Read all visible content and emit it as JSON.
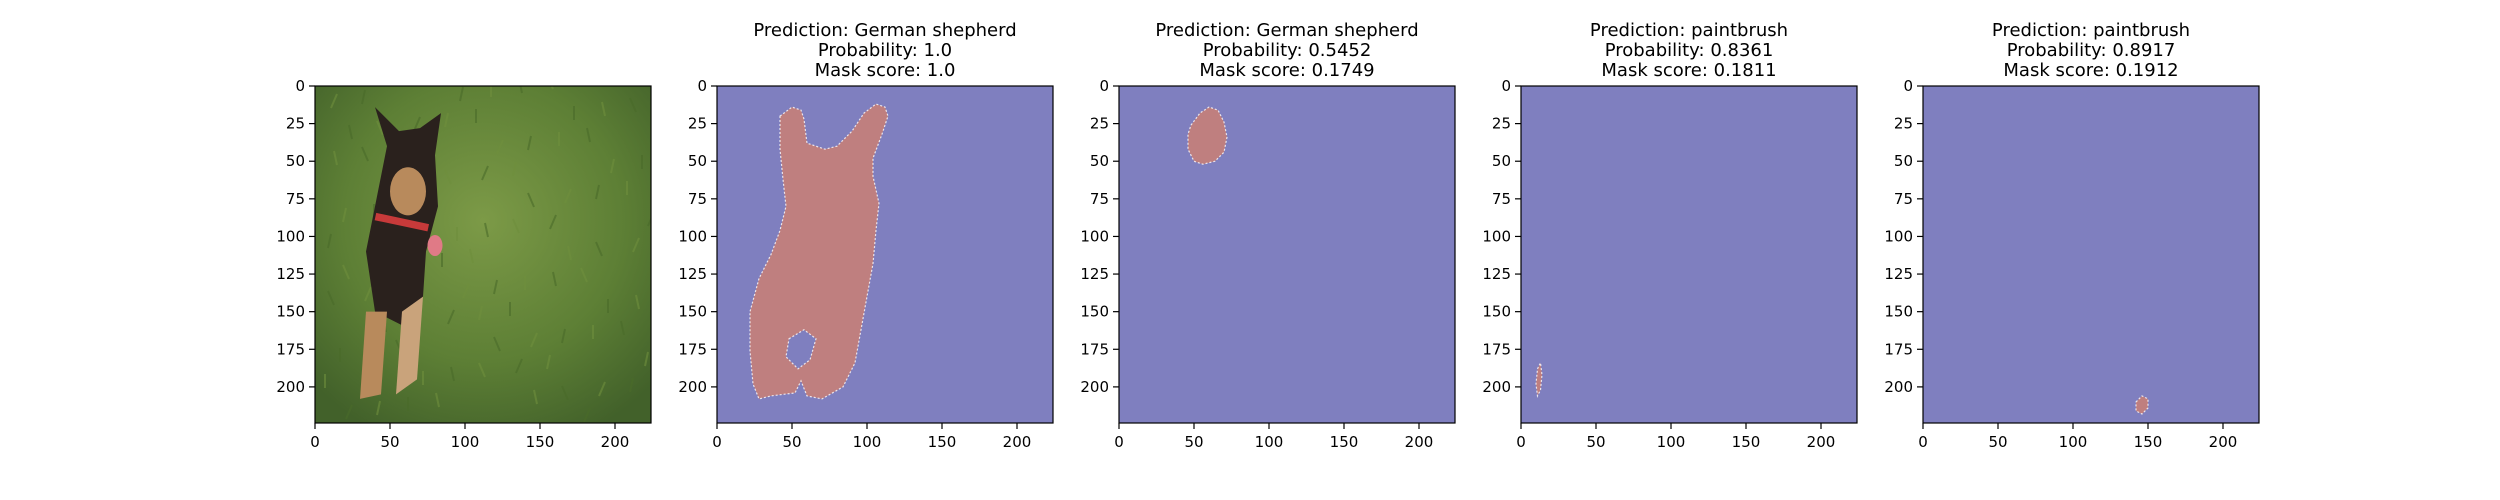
{
  "chart_data": [
    {
      "type": "image",
      "panel": "input-photo",
      "title": "",
      "xlim": [
        0,
        224
      ],
      "ylim": [
        224,
        0
      ],
      "xticks": [
        0,
        50,
        100,
        150,
        200
      ],
      "yticks": [
        0,
        25,
        50,
        75,
        100,
        125,
        150,
        175,
        200
      ],
      "colors": {
        "grass": "#4a6b2a",
        "grass_light": "#6f8f3d",
        "dog_dark": "#2a211d",
        "dog_tan": "#b88a5c",
        "collar": "#c73a3a",
        "tongue": "#e07a86"
      }
    },
    {
      "type": "heatmap",
      "panel": "mask-1",
      "title_lines": [
        "Prediction: German shepherd",
        "Probability: 1.0",
        "Mask score: 1.0"
      ],
      "xlim": [
        0,
        224
      ],
      "ylim": [
        224,
        0
      ],
      "xticks": [
        0,
        50,
        100,
        150,
        200
      ],
      "yticks": [
        0,
        25,
        50,
        75,
        100,
        125,
        150,
        175,
        200
      ],
      "background_color": "#7f7fbf",
      "mask_color": "#bf7f7f",
      "mask_polygon": [
        [
          42,
          20
        ],
        [
          50,
          14
        ],
        [
          56,
          16
        ],
        [
          58,
          22
        ],
        [
          60,
          38
        ],
        [
          72,
          42
        ],
        [
          80,
          40
        ],
        [
          90,
          30
        ],
        [
          98,
          18
        ],
        [
          106,
          12
        ],
        [
          112,
          14
        ],
        [
          114,
          20
        ],
        [
          110,
          32
        ],
        [
          104,
          48
        ],
        [
          104,
          60
        ],
        [
          108,
          78
        ],
        [
          106,
          96
        ],
        [
          104,
          118
        ],
        [
          100,
          140
        ],
        [
          96,
          162
        ],
        [
          92,
          184
        ],
        [
          84,
          200
        ],
        [
          70,
          208
        ],
        [
          60,
          206
        ],
        [
          56,
          196
        ],
        [
          52,
          204
        ],
        [
          36,
          206
        ],
        [
          28,
          208
        ],
        [
          24,
          198
        ],
        [
          22,
          176
        ],
        [
          22,
          150
        ],
        [
          28,
          128
        ],
        [
          36,
          112
        ],
        [
          42,
          96
        ],
        [
          46,
          80
        ],
        [
          44,
          62
        ],
        [
          42,
          42
        ]
      ],
      "mask_holes": [
        [
          [
            48,
            168
          ],
          [
            58,
            162
          ],
          [
            66,
            168
          ],
          [
            62,
            182
          ],
          [
            54,
            188
          ],
          [
            46,
            180
          ]
        ]
      ]
    },
    {
      "type": "heatmap",
      "panel": "mask-2",
      "title_lines": [
        "Prediction: German shepherd",
        "Probability: 0.5452",
        "Mask score: 0.1749"
      ],
      "xlim": [
        0,
        224
      ],
      "ylim": [
        224,
        0
      ],
      "xticks": [
        0,
        50,
        100,
        150,
        200
      ],
      "yticks": [
        0,
        25,
        50,
        75,
        100,
        125,
        150,
        175,
        200
      ],
      "background_color": "#7f7fbf",
      "mask_color": "#bf7f7f",
      "mask_polygon": [
        [
          48,
          26
        ],
        [
          54,
          18
        ],
        [
          60,
          14
        ],
        [
          66,
          16
        ],
        [
          70,
          24
        ],
        [
          72,
          34
        ],
        [
          70,
          44
        ],
        [
          64,
          50
        ],
        [
          56,
          52
        ],
        [
          50,
          50
        ],
        [
          46,
          42
        ],
        [
          46,
          32
        ]
      ],
      "mask_holes": []
    },
    {
      "type": "heatmap",
      "panel": "mask-3",
      "title_lines": [
        "Prediction: paintbrush",
        "Probability: 0.8361",
        "Mask score: 0.1811"
      ],
      "xlim": [
        0,
        224
      ],
      "ylim": [
        224,
        0
      ],
      "xticks": [
        0,
        50,
        100,
        150,
        200
      ],
      "yticks": [
        0,
        25,
        50,
        75,
        100,
        125,
        150,
        175,
        200
      ],
      "background_color": "#7f7fbf",
      "mask_color": "#bf7f7f",
      "mask_polygon": [
        [
          11,
          188
        ],
        [
          13,
          184
        ],
        [
          14,
          192
        ],
        [
          13,
          202
        ],
        [
          11,
          206
        ],
        [
          10,
          198
        ]
      ],
      "mask_holes": []
    },
    {
      "type": "heatmap",
      "panel": "mask-4",
      "title_lines": [
        "Prediction: paintbrush",
        "Probability: 0.8917",
        "Mask score: 0.1912"
      ],
      "xlim": [
        0,
        224
      ],
      "ylim": [
        224,
        0
      ],
      "xticks": [
        0,
        50,
        100,
        150,
        200
      ],
      "yticks": [
        0,
        25,
        50,
        75,
        100,
        125,
        150,
        175,
        200
      ],
      "background_color": "#7f7fbf",
      "mask_color": "#bf7f7f",
      "mask_polygon": [
        [
          142,
          210
        ],
        [
          146,
          206
        ],
        [
          150,
          208
        ],
        [
          150,
          214
        ],
        [
          146,
          218
        ],
        [
          142,
          216
        ]
      ],
      "mask_holes": []
    }
  ]
}
